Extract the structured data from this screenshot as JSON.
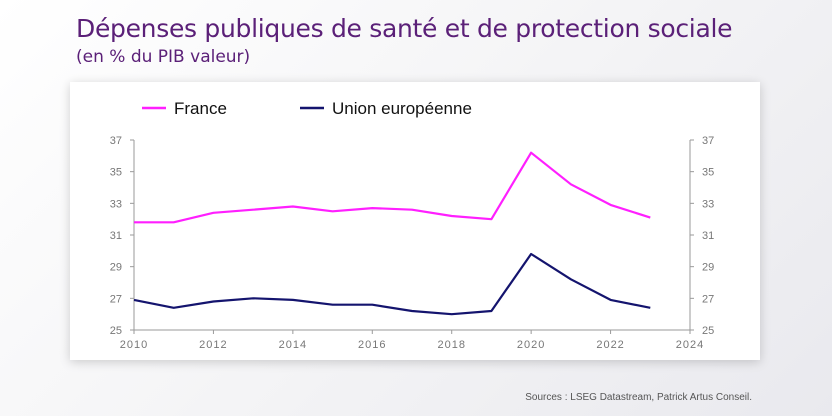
{
  "header": {
    "title": "Dépenses publiques de santé et de protection sociale",
    "subtitle": "(en % du PIB valeur)"
  },
  "footer": {
    "source": "Sources : LSEG Datastream, Patrick Artus Conseil."
  },
  "chart_data": {
    "type": "line",
    "title": "",
    "xlabel": "",
    "ylabel": "",
    "xlim": [
      2010,
      2024
    ],
    "ylim": [
      25,
      37
    ],
    "x_ticks": [
      2010,
      2012,
      2014,
      2016,
      2018,
      2020,
      2022,
      2024
    ],
    "y_ticks": [
      25,
      27,
      29,
      31,
      33,
      35,
      37
    ],
    "y_axis_right_mirror": true,
    "grid": false,
    "legend": "top-left",
    "series": [
      {
        "name": "France",
        "color": "#ff1fff",
        "x": [
          2010,
          2011,
          2012,
          2013,
          2014,
          2015,
          2016,
          2017,
          2018,
          2019,
          2020,
          2021,
          2022,
          2023
        ],
        "values": [
          31.8,
          31.8,
          32.4,
          32.6,
          32.8,
          32.5,
          32.7,
          32.6,
          32.2,
          32.0,
          36.2,
          34.2,
          32.9,
          32.1
        ]
      },
      {
        "name": "Union européenne",
        "color": "#14146e",
        "x": [
          2010,
          2011,
          2012,
          2013,
          2014,
          2015,
          2016,
          2017,
          2018,
          2019,
          2020,
          2021,
          2022,
          2023
        ],
        "values": [
          26.9,
          26.4,
          26.8,
          27.0,
          26.9,
          26.6,
          26.6,
          26.2,
          26.0,
          26.2,
          29.8,
          28.2,
          26.9,
          26.4
        ]
      }
    ]
  }
}
